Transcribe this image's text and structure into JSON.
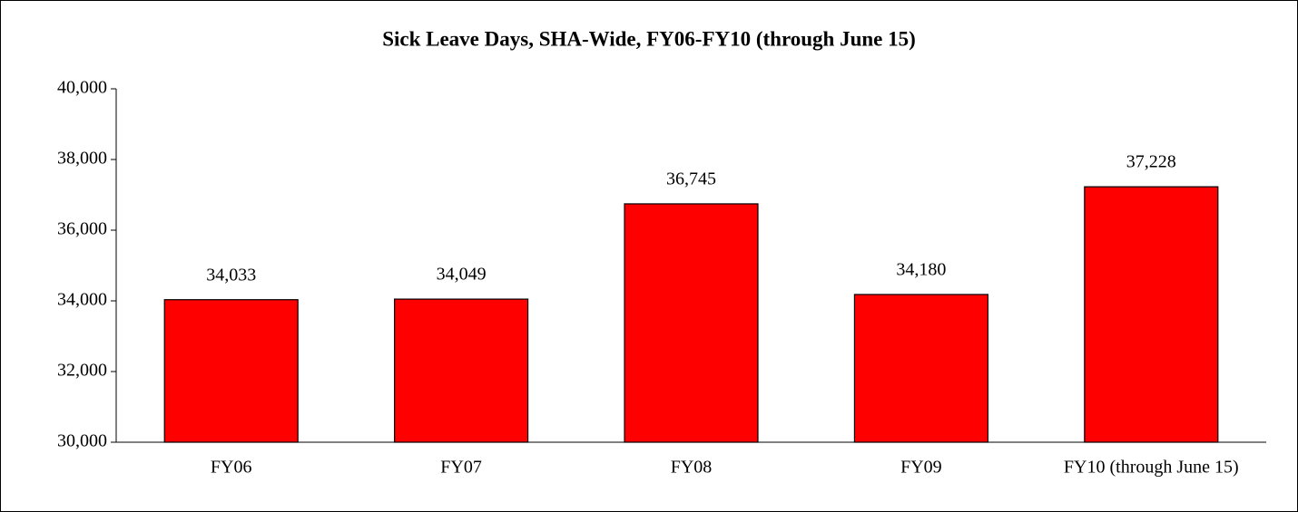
{
  "chart_data": {
    "type": "bar",
    "title": "Sick Leave Days, SHA-Wide, FY06-FY10 (through June 15)",
    "categories": [
      "FY06",
      "FY07",
      "FY08",
      "FY09",
      "FY10 (through June 15)"
    ],
    "values": [
      34033,
      34049,
      36745,
      34180,
      37228
    ],
    "value_labels": [
      "34,033",
      "34,049",
      "36,745",
      "34,180",
      "37,228"
    ],
    "color": "#ff0000",
    "ylim": [
      30000,
      40000
    ],
    "yticks": [
      {
        "value": 30000,
        "label": "30,000"
      },
      {
        "value": 32000,
        "label": "32,000"
      },
      {
        "value": 34000,
        "label": "34,000"
      },
      {
        "value": 36000,
        "label": "36,000"
      },
      {
        "value": 38000,
        "label": "38,000"
      },
      {
        "value": 40000,
        "label": "40,000"
      }
    ],
    "grid": false
  }
}
